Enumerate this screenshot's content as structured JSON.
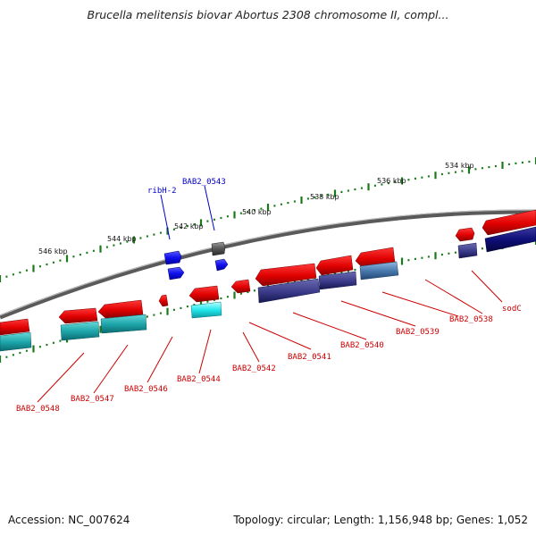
{
  "title": "Brucella melitensis biovar Abortus 2308 chromosome II, compl...",
  "footer": {
    "accession": "Accession: NC_007624",
    "topology": "Topology: circular; Length: 1,156,948 bp; Genes: 1,052"
  },
  "ticks": [
    {
      "label": "534 kbp",
      "x": 534
    },
    {
      "label": "536 kbp",
      "x": 536
    },
    {
      "label": "538 kbp",
      "x": 538
    },
    {
      "label": "540 kbp",
      "x": 540
    },
    {
      "label": "542 kbp",
      "x": 542
    },
    {
      "label": "544 kbp",
      "x": 544
    },
    {
      "label": "546 kbp",
      "x": 546
    }
  ],
  "genes": [
    {
      "name": "sodC",
      "color": "#cc0000"
    },
    {
      "name": "BAB2_0538",
      "color": "#cc0000"
    },
    {
      "name": "BAB2_0539",
      "color": "#cc0000"
    },
    {
      "name": "BAB2_0540",
      "color": "#cc0000"
    },
    {
      "name": "BAB2_0541",
      "color": "#cc0000"
    },
    {
      "name": "BAB2_0542",
      "color": "#cc0000"
    },
    {
      "name": "BAB2_0544",
      "color": "#cc0000"
    },
    {
      "name": "BAB2_0546",
      "color": "#cc0000"
    },
    {
      "name": "BAB2_0547",
      "color": "#cc0000"
    },
    {
      "name": "BAB2_0548",
      "color": "#cc0000"
    },
    {
      "name": "ribH-2",
      "color": "#0000cc"
    },
    {
      "name": "BAB2_0543",
      "color": "#0000cc"
    }
  ]
}
